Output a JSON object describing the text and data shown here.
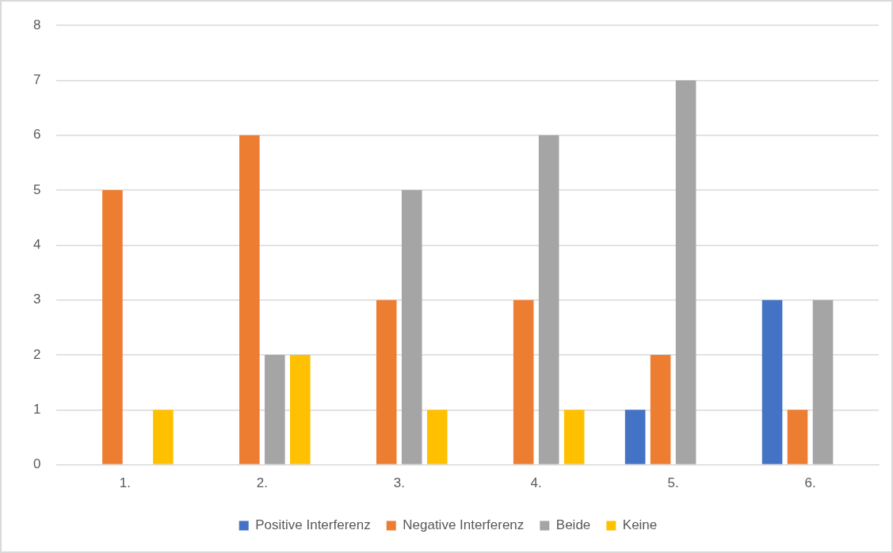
{
  "chart_data": {
    "type": "bar",
    "categories": [
      "1.",
      "2.",
      "3.",
      "4.",
      "5.",
      "6."
    ],
    "series": [
      {
        "name": "Positive Interferenz",
        "color": "#4472c4",
        "values": [
          0,
          0,
          0,
          0,
          1,
          3
        ]
      },
      {
        "name": "Negative Interferenz",
        "color": "#ed7d31",
        "values": [
          5,
          6,
          3,
          3,
          2,
          1
        ]
      },
      {
        "name": "Beide",
        "color": "#a5a5a5",
        "values": [
          0,
          2,
          5,
          6,
          7,
          3
        ]
      },
      {
        "name": "Keine",
        "color": "#ffc000",
        "values": [
          1,
          2,
          1,
          1,
          0,
          0
        ]
      }
    ],
    "ylim": [
      0,
      8
    ],
    "yticks": [
      0,
      1,
      2,
      3,
      4,
      5,
      6,
      7,
      8
    ],
    "grid": "y",
    "legend": "bottom"
  }
}
